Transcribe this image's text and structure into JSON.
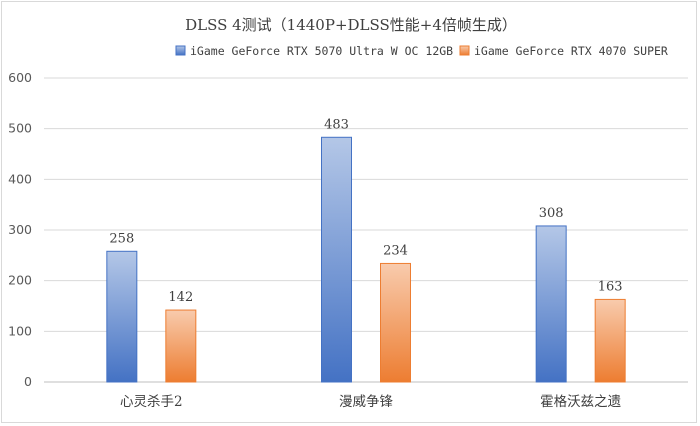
{
  "chart_data": {
    "type": "bar",
    "title": "DLSS 4测试（1440P+DLSS性能+4倍帧生成）",
    "categories": [
      "心灵杀手2",
      "漫威争锋",
      "霍格沃兹之遗"
    ],
    "series": [
      {
        "name": "iGame GeForce RTX 5070 Ultra W OC 12GB",
        "values": [
          258,
          483,
          308
        ],
        "color": "#4472c4",
        "color_light": "#b4c7e7"
      },
      {
        "name": "iGame GeForce RTX 4070 SUPER",
        "values": [
          142,
          234,
          163
        ],
        "color": "#ed7d31",
        "color_light": "#f8cbad"
      }
    ],
    "yticks": [
      "0",
      "100",
      "200",
      "300",
      "400",
      "500",
      "600"
    ],
    "ylim": [
      0,
      600
    ],
    "xlabel": "",
    "ylabel": "",
    "grid": true,
    "legend_position": "top-right",
    "data_labels": true
  }
}
